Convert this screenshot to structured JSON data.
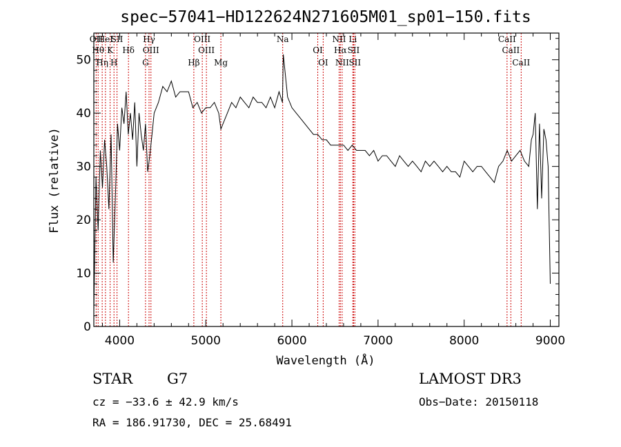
{
  "chart_data": {
    "type": "line",
    "title": "spec−57041−HD122624N271605M01_sp01−150.fits",
    "xlabel": "Wavelength (Å)",
    "ylabel": "Flux (relative)",
    "xlim": [
      3700,
      9100
    ],
    "ylim": [
      0,
      55
    ],
    "xticks": [
      4000,
      5000,
      6000,
      7000,
      8000,
      9000
    ],
    "yticks": [
      0,
      10,
      20,
      30,
      40,
      50
    ],
    "series": [
      {
        "x": [
          3700,
          3725,
          3750,
          3775,
          3800,
          3825,
          3850,
          3875,
          3900,
          3925,
          3950,
          3975,
          4000,
          4025,
          4050,
          4075,
          4100,
          4125,
          4150,
          4175,
          4200,
          4225,
          4250,
          4275,
          4300,
          4325,
          4350,
          4375,
          4400,
          4450,
          4500,
          4550,
          4600,
          4650,
          4700,
          4750,
          4800,
          4850,
          4900,
          4950,
          5000,
          5050,
          5100,
          5150,
          5175,
          5200,
          5250,
          5300,
          5350,
          5400,
          5450,
          5500,
          5550,
          5600,
          5650,
          5700,
          5750,
          5800,
          5850,
          5890,
          5900,
          5950,
          6000,
          6050,
          6100,
          6150,
          6200,
          6250,
          6300,
          6350,
          6400,
          6450,
          6500,
          6550,
          6600,
          6650,
          6700,
          6750,
          6800,
          6850,
          6900,
          6950,
          7000,
          7050,
          7100,
          7150,
          7200,
          7250,
          7300,
          7350,
          7400,
          7450,
          7500,
          7550,
          7600,
          7650,
          7700,
          7750,
          7800,
          7850,
          7900,
          7950,
          8000,
          8050,
          8100,
          8150,
          8200,
          8250,
          8300,
          8350,
          8400,
          8450,
          8500,
          8550,
          8600,
          8650,
          8700,
          8750,
          8780,
          8800,
          8825,
          8850,
          8875,
          8900,
          8925,
          8950,
          8975,
          9000
        ],
        "y": [
          3,
          28,
          18,
          33,
          26,
          35,
          30,
          22,
          36,
          12,
          24,
          38,
          33,
          41,
          38,
          44,
          36,
          40,
          35,
          42,
          30,
          40,
          36,
          33,
          38,
          29,
          32,
          36,
          40,
          42,
          45,
          44,
          46,
          43,
          44,
          44,
          44,
          41,
          42,
          40,
          41,
          41,
          42,
          40,
          37,
          38,
          40,
          42,
          41,
          43,
          42,
          41,
          43,
          42,
          42,
          41,
          43,
          41,
          44,
          42,
          51,
          43,
          41,
          40,
          39,
          38,
          37,
          36,
          36,
          35,
          35,
          34,
          34,
          34,
          34,
          33,
          34,
          33,
          33,
          33,
          32,
          33,
          31,
          32,
          32,
          31,
          30,
          32,
          31,
          30,
          31,
          30,
          29,
          31,
          30,
          31,
          30,
          29,
          30,
          29,
          29,
          28,
          31,
          30,
          29,
          30,
          30,
          29,
          28,
          27,
          30,
          31,
          33,
          31,
          32,
          33,
          31,
          30,
          35,
          36,
          40,
          22,
          38,
          24,
          37,
          35,
          30,
          8
        ]
      }
    ],
    "lines": [
      {
        "wave": 3727,
        "labels": [
          "OII"
        ]
      },
      {
        "wave": 3750,
        "labels": [
          "Hθ"
        ]
      },
      {
        "wave": 3797,
        "labels": [
          "Hη"
        ]
      },
      {
        "wave": 3835,
        "labels": [
          "HeI"
        ]
      },
      {
        "wave": 3889,
        "labels": [
          "K"
        ]
      },
      {
        "wave": 3934,
        "labels": [
          "H"
        ]
      },
      {
        "wave": 3969,
        "labels": [
          "SII"
        ]
      },
      {
        "wave": 4102,
        "labels": [
          "Hδ"
        ]
      },
      {
        "wave": 4300,
        "labels": [
          "G"
        ]
      },
      {
        "wave": 4341,
        "labels": [
          "Hγ"
        ]
      },
      {
        "wave": 4363,
        "labels": [
          "OIII"
        ]
      },
      {
        "wave": 4861,
        "labels": [
          "Hβ"
        ]
      },
      {
        "wave": 4959,
        "labels": [
          "OIII"
        ]
      },
      {
        "wave": 5007,
        "labels": [
          "OIII"
        ]
      },
      {
        "wave": 5175,
        "labels": [
          "Mg"
        ]
      },
      {
        "wave": 5893,
        "labels": [
          "Na"
        ]
      },
      {
        "wave": 6300,
        "labels": [
          "OI"
        ]
      },
      {
        "wave": 6363,
        "labels": [
          "OI"
        ]
      },
      {
        "wave": 6548,
        "labels": [
          "NII"
        ]
      },
      {
        "wave": 6563,
        "labels": [
          "Hα"
        ]
      },
      {
        "wave": 6583,
        "labels": [
          "NII"
        ]
      },
      {
        "wave": 6707,
        "labels": [
          "Li"
        ]
      },
      {
        "wave": 6716,
        "labels": [
          "SII"
        ]
      },
      {
        "wave": 6731,
        "labels": [
          "SII"
        ]
      },
      {
        "wave": 8498,
        "labels": [
          "CaII"
        ]
      },
      {
        "wave": 8542,
        "labels": [
          "CaII"
        ]
      },
      {
        "wave": 8662,
        "labels": [
          "CaII"
        ]
      }
    ],
    "spectral_line_color": "#cc0000"
  },
  "info": {
    "object_class": "STAR",
    "subclass": "G7",
    "survey": "LAMOST DR3",
    "redshift": "cz = −33.6 ± 42.9 km/s",
    "obs_date": "Obs−Date: 20150118",
    "coords": "RA = 186.91730, DEC =  25.68491"
  }
}
